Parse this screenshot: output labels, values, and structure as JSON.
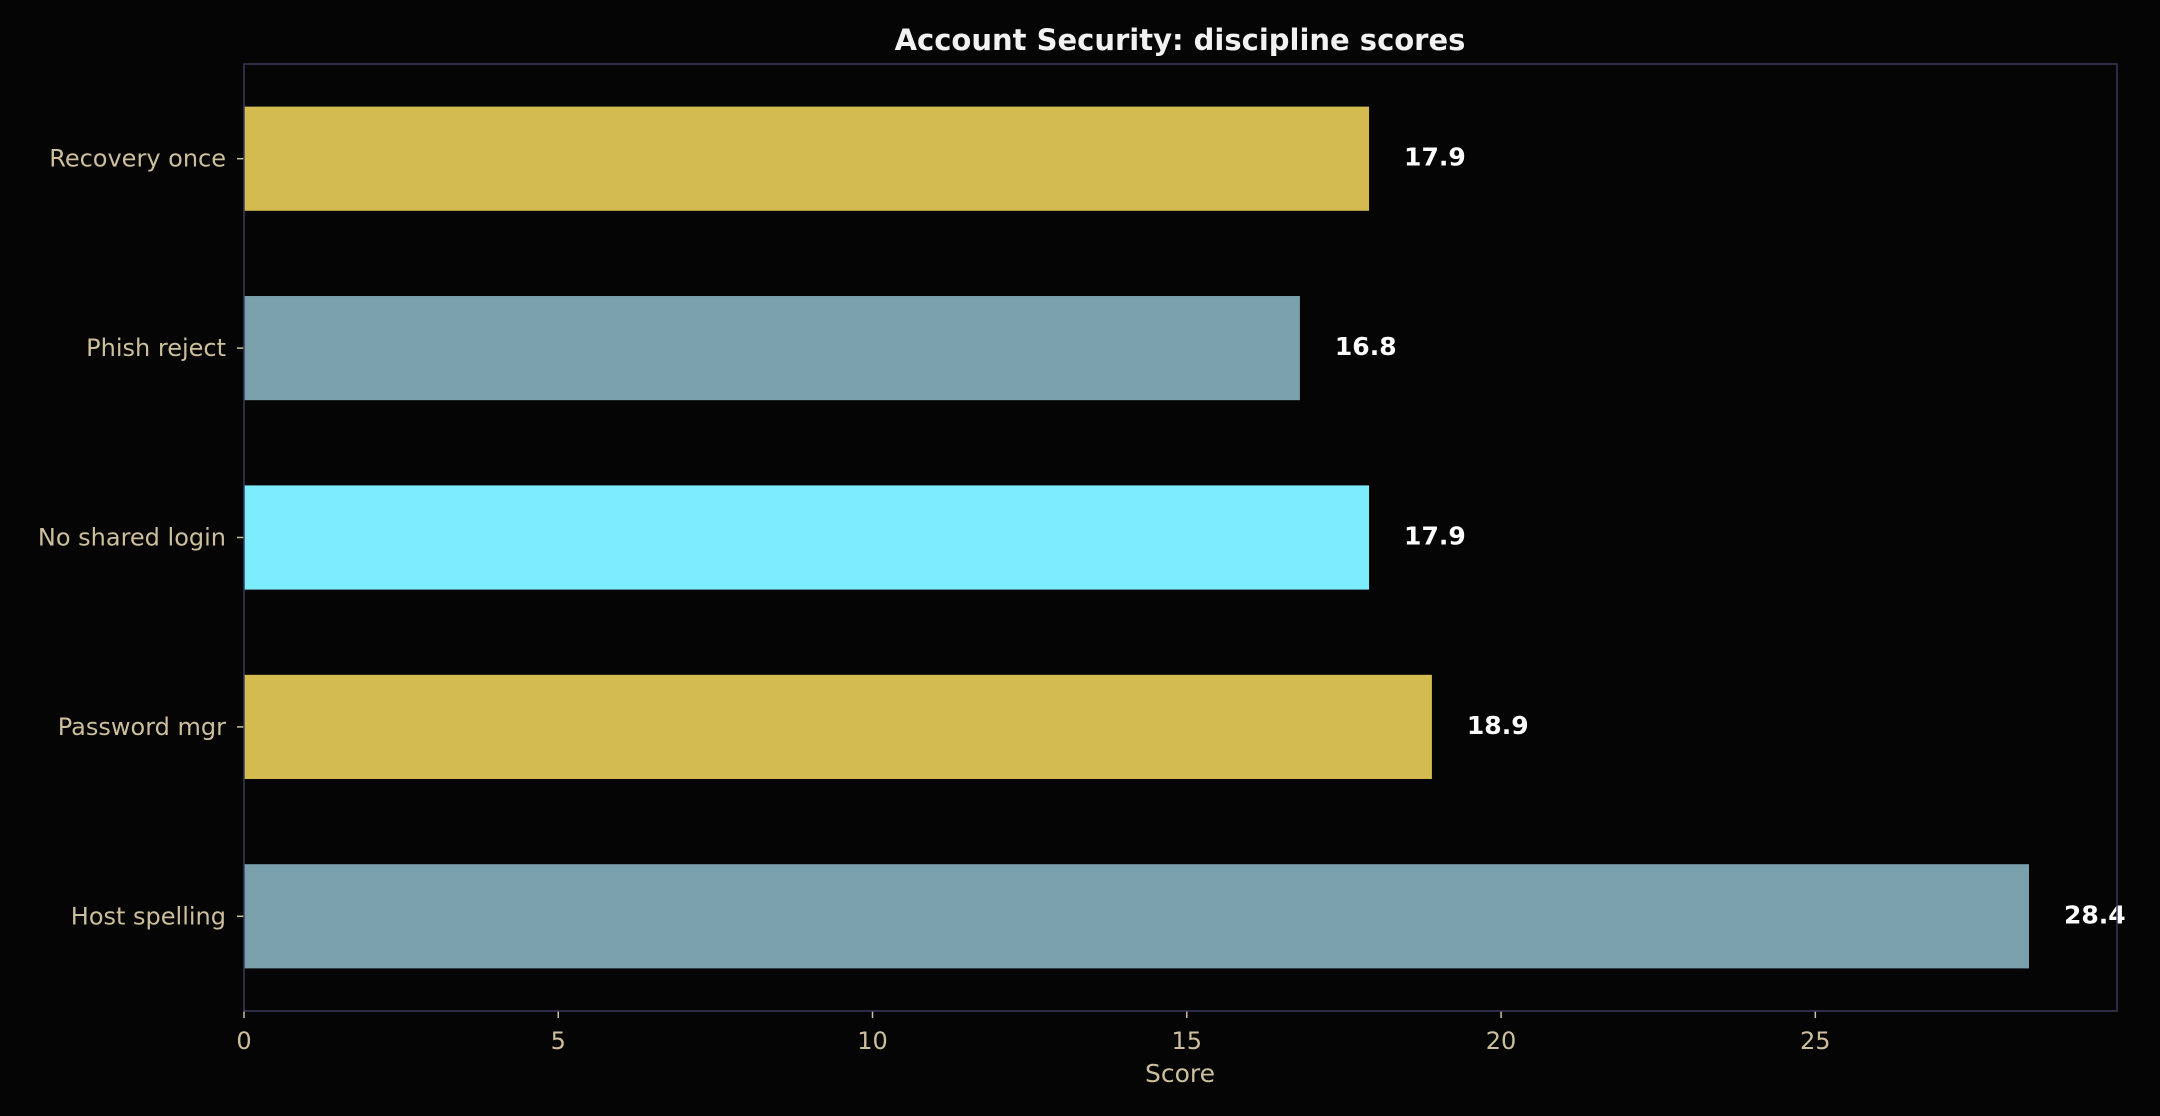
{
  "chart_data": {
    "type": "bar",
    "orientation": "horizontal",
    "title": "Account Security: discipline scores",
    "xlabel": "Score",
    "ylabel": "",
    "xlim": [
      0,
      29.8
    ],
    "xticks": [
      "0",
      "5",
      "10",
      "15",
      "20",
      "25"
    ],
    "grid": false,
    "categories": [
      "Recovery once",
      "Phish reject",
      "No shared login",
      "Password mgr",
      "Host spelling"
    ],
    "values": [
      17.9,
      16.8,
      17.9,
      18.9,
      28.4
    ],
    "value_labels": [
      "17.9",
      "16.8",
      "17.9",
      "18.9",
      "28.4"
    ],
    "colors": [
      "#d4bb50",
      "#7aa1ab",
      "#7bedfd",
      "#d4bb50",
      "#7aa1ab"
    ],
    "frame_color": "#3a3a5a",
    "background": "#050505"
  }
}
